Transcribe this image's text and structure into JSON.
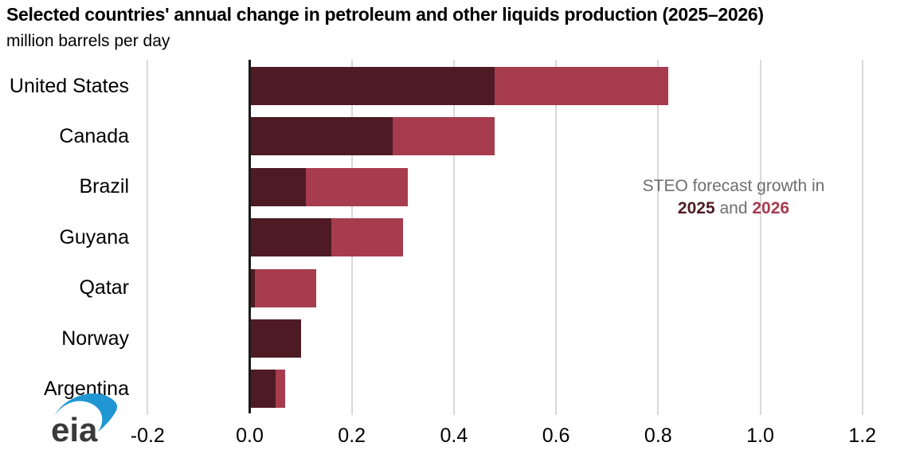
{
  "header": {
    "title": "Selected countries' annual change in petroleum and other liquids production (2025–2026)",
    "subtitle": "million barrels per day"
  },
  "annotation": {
    "line1": "STEO forecast growth in",
    "year1": "2025",
    "connector": " and ",
    "year2": "2026"
  },
  "logo": {
    "text": "eia"
  },
  "colors": {
    "series_2025": "#4e1b24",
    "series_2026": "#a63c4e",
    "annotation_gray": "#6e6e6e",
    "gridline": "#d9d9d9",
    "zero_axis": "#1a1a1a",
    "eia_blue": "#2096d3",
    "eia_text": "#3a3a3a"
  },
  "chart_data": {
    "type": "bar",
    "orientation": "horizontal",
    "stacked": true,
    "title": "Selected countries' annual change in petroleum and other liquids production (2025–2026)",
    "ylabel": "",
    "xlabel": "million barrels per day",
    "categories": [
      "United States",
      "Canada",
      "Brazil",
      "Guyana",
      "Qatar",
      "Norway",
      "Argentina"
    ],
    "series": [
      {
        "name": "2025",
        "values": [
          0.48,
          0.28,
          0.11,
          0.16,
          0.01,
          0.1,
          0.05
        ]
      },
      {
        "name": "2026",
        "values": [
          0.34,
          0.2,
          0.2,
          0.14,
          0.12,
          0.0,
          0.02
        ]
      }
    ],
    "totals": [
      0.82,
      0.48,
      0.31,
      0.3,
      0.13,
      0.1,
      0.07
    ],
    "xlim": [
      -0.2,
      1.2
    ],
    "x_ticks": [
      -0.2,
      0.0,
      0.2,
      0.4,
      0.6,
      0.8,
      1.0,
      1.2
    ],
    "x_tick_labels": [
      "-0.2",
      "0.0",
      "0.2",
      "0.4",
      "0.6",
      "0.8",
      "1.0",
      "1.2"
    ],
    "grid": "vertical",
    "legend_position": "annotation-in-plot"
  }
}
